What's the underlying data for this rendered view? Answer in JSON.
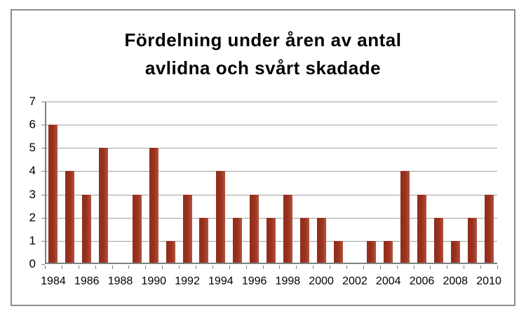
{
  "chart_data": {
    "type": "bar",
    "title": "Fördelning under åren av antal avlidna och svårt skadade",
    "title_lines": [
      "Fördelning under åren av antal",
      "avlidna och svårt skadade"
    ],
    "categories": [
      1984,
      1985,
      1986,
      1987,
      1988,
      1989,
      1990,
      1991,
      1992,
      1993,
      1994,
      1995,
      1996,
      1997,
      1998,
      1999,
      2000,
      2001,
      2002,
      2003,
      2004,
      2005,
      2006,
      2007,
      2008,
      2009,
      2010
    ],
    "values": [
      6,
      4,
      3,
      5,
      0,
      3,
      5,
      1,
      3,
      2,
      4,
      2,
      3,
      2,
      3,
      2,
      2,
      1,
      0,
      1,
      1,
      4,
      3,
      2,
      1,
      2,
      3
    ],
    "x_tick_labels": [
      "1984",
      "1986",
      "1988",
      "1990",
      "1992",
      "1994",
      "1996",
      "1998",
      "2000",
      "2002",
      "2004",
      "2006",
      "2008",
      "2010"
    ],
    "y_ticks": [
      0,
      1,
      2,
      3,
      4,
      5,
      6,
      7
    ],
    "ylim": [
      0,
      7
    ],
    "xlabel": "",
    "ylabel": "",
    "grid": "horizontal",
    "legend_position": "none",
    "colors": {
      "bar": "#9b321e",
      "bar_edge_highlight": "#b25540",
      "bar_dark": "#8f2d1a",
      "gridline": "#a3a3a3",
      "axis": "#808080",
      "frame_border": "#8c8c8c",
      "text": "#000000",
      "background": "#ffffff"
    }
  }
}
